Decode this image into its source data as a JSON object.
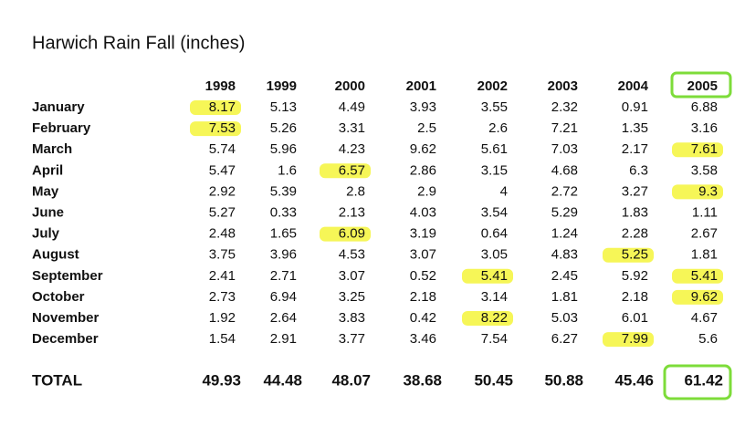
{
  "title": "Harwich Rain Fall (inches)",
  "table": {
    "columns": [
      1998,
      1999,
      2000,
      2001,
      2002,
      2003,
      2004,
      2005
    ],
    "rows": [
      {
        "label": "January",
        "values": [
          8.17,
          5.13,
          4.49,
          3.93,
          3.55,
          2.32,
          0.91,
          6.88
        ]
      },
      {
        "label": "February",
        "values": [
          7.53,
          5.26,
          3.31,
          2.5,
          2.6,
          7.21,
          1.35,
          3.16
        ]
      },
      {
        "label": "March",
        "values": [
          5.74,
          5.96,
          4.23,
          9.62,
          5.61,
          7.03,
          2.17,
          7.61
        ]
      },
      {
        "label": "April",
        "values": [
          5.47,
          1.6,
          6.57,
          2.86,
          3.15,
          4.68,
          6.3,
          3.58
        ]
      },
      {
        "label": "May",
        "values": [
          2.92,
          5.39,
          2.8,
          2.9,
          4,
          2.72,
          3.27,
          9.3
        ]
      },
      {
        "label": "June",
        "values": [
          5.27,
          0.33,
          2.13,
          4.03,
          3.54,
          5.29,
          1.83,
          1.11
        ]
      },
      {
        "label": "July",
        "values": [
          2.48,
          1.65,
          6.09,
          3.19,
          0.64,
          1.24,
          2.28,
          2.67
        ]
      },
      {
        "label": "August",
        "values": [
          3.75,
          3.96,
          4.53,
          3.07,
          3.05,
          4.83,
          5.25,
          1.81
        ]
      },
      {
        "label": "September",
        "values": [
          2.41,
          2.71,
          3.07,
          0.52,
          5.41,
          2.45,
          5.92,
          5.41
        ]
      },
      {
        "label": "October",
        "values": [
          2.73,
          6.94,
          3.25,
          2.18,
          3.14,
          1.81,
          2.18,
          9.62
        ]
      },
      {
        "label": "November",
        "values": [
          1.92,
          2.64,
          3.83,
          0.42,
          8.22,
          5.03,
          6.01,
          4.67
        ]
      },
      {
        "label": "December",
        "values": [
          1.54,
          2.91,
          3.77,
          3.46,
          7.54,
          6.27,
          7.99,
          5.6
        ]
      }
    ],
    "total": {
      "label": "TOTAL",
      "values": [
        49.93,
        44.48,
        48.07,
        38.68,
        50.45,
        50.88,
        45.46,
        61.42
      ]
    }
  }
}
